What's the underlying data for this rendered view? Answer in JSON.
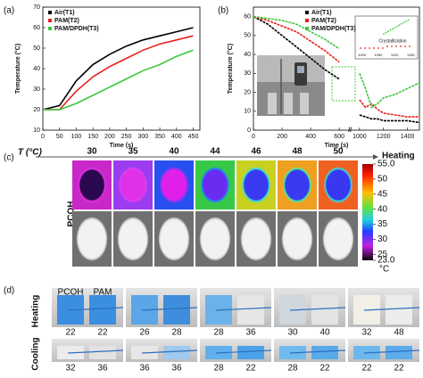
{
  "panel_labels": [
    "(a)",
    "(b)",
    "(c)",
    "(d)"
  ],
  "chart_data": [
    {
      "type": "line",
      "x_label": "Time (s)",
      "y_label": "Temperature (°C)",
      "legend": "top-left",
      "x": [
        0,
        50,
        100,
        150,
        200,
        250,
        300,
        350,
        400,
        450
      ],
      "xlim": [
        0,
        470
      ],
      "xticks": [
        0,
        50,
        100,
        150,
        200,
        250,
        300,
        350,
        400,
        450
      ],
      "ylim": [
        10,
        70
      ],
      "yticks": [
        10,
        20,
        30,
        40,
        50,
        60,
        70
      ],
      "series": [
        {
          "name": "Air(T1)",
          "color": "#000000",
          "values": [
            20,
            22,
            34,
            42,
            47,
            51,
            54,
            56,
            58,
            60
          ]
        },
        {
          "name": "PAM(T2)",
          "color": "#e8211d",
          "values": [
            20,
            20,
            29,
            36,
            41,
            45,
            49,
            52,
            54,
            56
          ]
        },
        {
          "name": "PAM/DPDH(T3)",
          "color": "#3cc83c",
          "values": [
            20,
            20,
            23,
            27,
            31,
            35,
            39,
            42,
            46,
            49
          ]
        }
      ]
    },
    {
      "type": "line",
      "x_label": "Time (s)",
      "y_label": "Temperature (°C)",
      "legend": "top-right",
      "x": [
        0,
        100,
        200,
        300,
        400,
        500,
        600,
        1000,
        1050,
        1100,
        1150,
        1200,
        1300,
        1400,
        1500
      ],
      "xlim": [
        0,
        1500
      ],
      "x_break": [
        650,
        950
      ],
      "xticks": [
        0,
        200,
        400,
        600,
        1000,
        1200,
        1400
      ],
      "ylim": [
        0,
        65
      ],
      "yticks": [
        0,
        10,
        20,
        30,
        40,
        50,
        60
      ],
      "series": [
        {
          "name": "Air(T1)",
          "color": "#000000",
          "values": [
            60,
            56,
            50,
            44,
            38,
            32,
            27,
            8,
            7,
            6,
            6,
            5,
            5,
            5,
            4
          ]
        },
        {
          "name": "PAM(T2)",
          "color": "#e8211d",
          "values": [
            60,
            58,
            55,
            52,
            47,
            42,
            36,
            16,
            12,
            14,
            11,
            9,
            8,
            7,
            7
          ]
        },
        {
          "name": "PAM/DPDH(T3)",
          "color": "#3cc83c",
          "values": [
            60,
            59,
            58,
            56,
            52,
            48,
            43,
            30,
            22,
            12,
            14,
            17,
            19,
            22,
            25
          ]
        }
      ],
      "inset": {
        "annotation": "Crystallization",
        "xticks": [
          1000,
          1050,
          1100,
          1150
        ]
      }
    }
  ],
  "thermal": {
    "axis_label": "T (°C)",
    "temperatures": [
      30,
      35,
      40,
      44,
      46,
      48,
      50
    ],
    "direction": "Heating",
    "sample": "PCOH",
    "colorbar": {
      "range": [
        23,
        55
      ],
      "unit": "°C",
      "ticks": [
        {
          "value": 55,
          "label": "55.0"
        },
        50,
        45,
        40,
        35,
        30,
        25,
        {
          "value": 23,
          "label": "23.0"
        }
      ]
    }
  },
  "photos": {
    "labels": [
      "PCOH",
      "PAM"
    ],
    "rows": [
      {
        "name": "Heating",
        "pairs": [
          [
            22,
            22
          ],
          [
            26,
            28
          ],
          [
            28,
            36
          ],
          [
            30,
            40
          ],
          [
            32,
            48
          ]
        ]
      },
      {
        "name": "Cooling",
        "pairs": [
          [
            32,
            36
          ],
          [
            36,
            36
          ],
          [
            28,
            22
          ],
          [
            28,
            22
          ],
          [
            22,
            22
          ]
        ]
      }
    ]
  }
}
